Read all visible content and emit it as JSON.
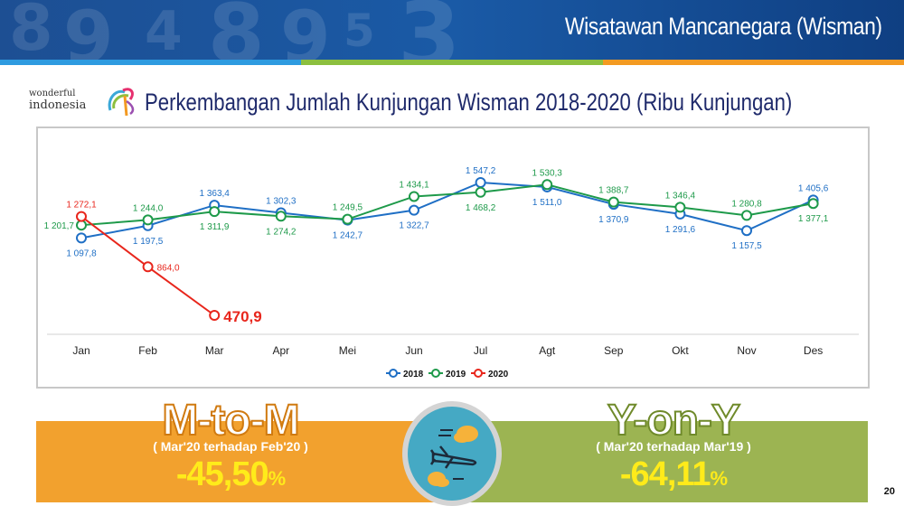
{
  "header": {
    "title": "Wisatawan Mancanegara (Wisman)",
    "stripe_colors": [
      "#2e9be0",
      "#8cbf3f",
      "#f39a22"
    ]
  },
  "logo": {
    "line1": "wonderful",
    "line2": "indonesia"
  },
  "chart_title": "Perkembangan Jumlah Kunjungan Wisman 2018-2020 (Ribu Kunjungan)",
  "chart_data": {
    "type": "line",
    "title": "Perkembangan Jumlah Kunjungan Wisman 2018-2020 (Ribu Kunjungan)",
    "xlabel": "",
    "ylabel": "Ribu Kunjungan",
    "categories": [
      "Jan",
      "Feb",
      "Mar",
      "Apr",
      "Mei",
      "Jun",
      "Jul",
      "Agt",
      "Sep",
      "Okt",
      "Nov",
      "Des"
    ],
    "series": [
      {
        "name": "2018",
        "color": "#1f6fc5",
        "values": [
          1097.8,
          1197.5,
          1363.4,
          1302.3,
          1242.7,
          1322.7,
          1547.2,
          1511.0,
          1370.9,
          1291.6,
          1157.5,
          1405.6
        ],
        "labels": [
          "1 097,8",
          "1 197,5",
          "1 363,4",
          "1 302,3",
          "1 242,7",
          "1 322,7",
          "1 547,2",
          "1 511,0",
          "1 370,9",
          "1 291,6",
          "1 157,5",
          "1 405,6"
        ]
      },
      {
        "name": "2019",
        "color": "#1e9a4a",
        "values": [
          1201.7,
          1244.0,
          1311.9,
          1274.2,
          1249.5,
          1434.1,
          1468.2,
          1530.3,
          1388.7,
          1346.4,
          1280.8,
          1377.1
        ],
        "labels": [
          "1 201,7",
          "1 244,0",
          "1 311,9",
          "1 274,2",
          "1 249,5",
          "1 434,1",
          "1 468,2",
          "1 530,3",
          "1 388,7",
          "1 346,4",
          "1 280,8",
          "1 377,1"
        ]
      },
      {
        "name": "2020",
        "color": "#e8261c",
        "values": [
          1272.1,
          864.0,
          470.9
        ],
        "labels": [
          "1 272,1",
          "864,0",
          "470,9"
        ]
      }
    ],
    "legend": [
      "2018",
      "2019",
      "2020"
    ],
    "legend_position": "bottom",
    "grid": false
  },
  "summary": {
    "mtm": {
      "label": "M-to-M",
      "sub": "( Mar'20 terhadap Feb'20 )",
      "value": "-45,50",
      "unit": "%",
      "color": "#f2a12e"
    },
    "yoy": {
      "label": "Y-on-Y",
      "sub": "( Mar'20 terhadap Mar'19 )",
      "value": "-64,11",
      "unit": "%",
      "color": "#9cb452"
    },
    "icon": "airplane-clouds-icon"
  },
  "page_number": "20"
}
